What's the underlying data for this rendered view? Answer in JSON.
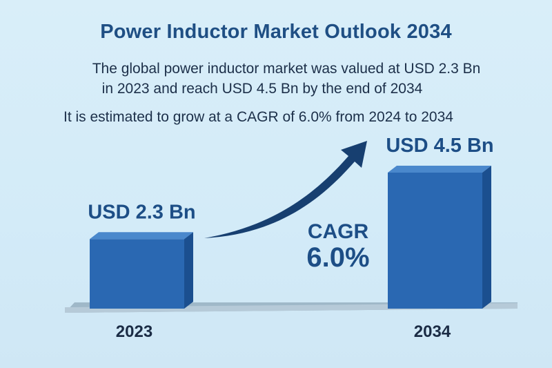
{
  "header": {
    "title": "Power Inductor Market Outlook 2034",
    "line1": "The global power inductor market was valued at USD 2.3 Bn",
    "line2": "in 2023 and reach USD 4.5 Bn by the end of 2034",
    "line3": "It is estimated to grow at a CAGR of 6.0% from 2024 to 2034"
  },
  "chart_data": {
    "type": "bar",
    "categories": [
      "2023",
      "2034"
    ],
    "values": [
      2.3,
      4.5
    ],
    "value_labels": [
      "USD 2.3 Bn",
      "USD 4.5 Bn"
    ],
    "unit": "USD Bn",
    "annotation": {
      "label": "CAGR",
      "value": "6.0%"
    },
    "ylim": [
      0,
      4.5
    ],
    "grid": false,
    "colors": {
      "bar_front": "#2a68b2",
      "bar_side": "#1b4f8f",
      "bar_top": "#4a88cc",
      "arrow": "#173f70",
      "platform": "#9fb8c8"
    }
  }
}
